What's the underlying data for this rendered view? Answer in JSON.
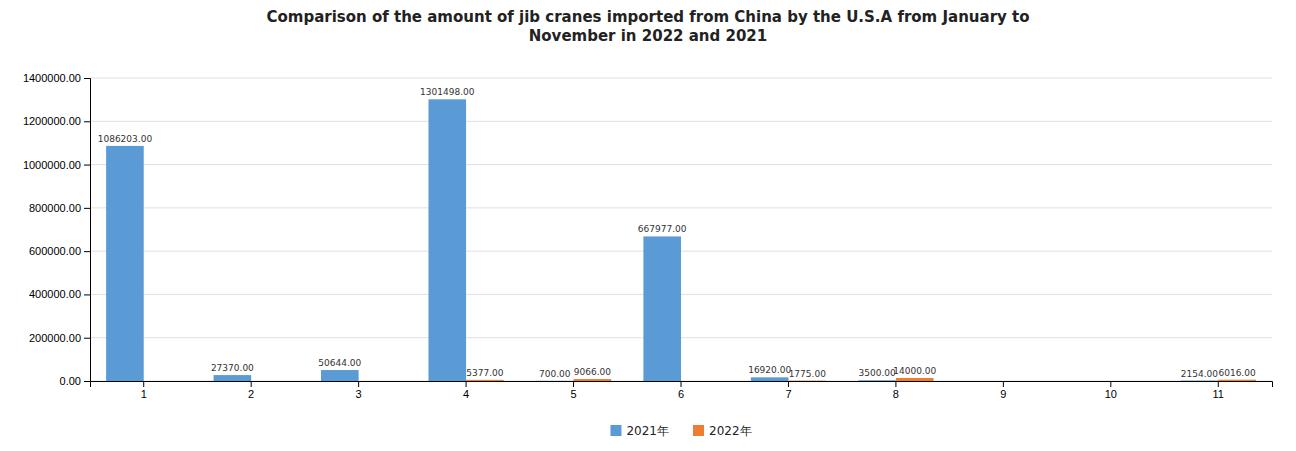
{
  "chart_data": {
    "type": "bar",
    "title": "Comparison of the amount of jib cranes imported from China by the U.S.A from January to\nNovember in 2022 and 2021",
    "categories": [
      "1",
      "2",
      "3",
      "4",
      "5",
      "6",
      "7",
      "8",
      "9",
      "10",
      "11"
    ],
    "series": [
      {
        "name": "2021年",
        "color": "#5b9bd5",
        "values": [
          1086203,
          27370,
          50644,
          1301498,
          700,
          667977,
          16920,
          3500,
          0,
          0,
          2154
        ],
        "value_labels": [
          "1086203.00",
          "27370.00",
          "50644.00",
          "1301498.00",
          "700.00",
          "667977.00",
          "16920.00",
          "3500.00",
          null,
          null,
          "2154.00"
        ]
      },
      {
        "name": "2022年",
        "color": "#ed7d31",
        "values": [
          0,
          0,
          0,
          5377,
          9066,
          0,
          1775,
          14000,
          0,
          0,
          6016
        ],
        "value_labels": [
          null,
          null,
          null,
          "5377.00",
          "9066.00",
          null,
          "1775.00",
          "14000.00",
          null,
          null,
          "6016.00"
        ]
      }
    ],
    "ylim": [
      0,
      1400000
    ],
    "yticks": [
      {
        "value": 0,
        "label": "0.00"
      },
      {
        "value": 200000,
        "label": "200000.00"
      },
      {
        "value": 400000,
        "label": "400000.00"
      },
      {
        "value": 600000,
        "label": "600000.00"
      },
      {
        "value": 800000,
        "label": "800000.00"
      },
      {
        "value": 1000000,
        "label": "1000000.00"
      },
      {
        "value": 1200000,
        "label": "1200000.00"
      },
      {
        "value": 1400000,
        "label": "1400000.00"
      }
    ],
    "grid": true,
    "data_labels": true,
    "legend": "bottom"
  }
}
